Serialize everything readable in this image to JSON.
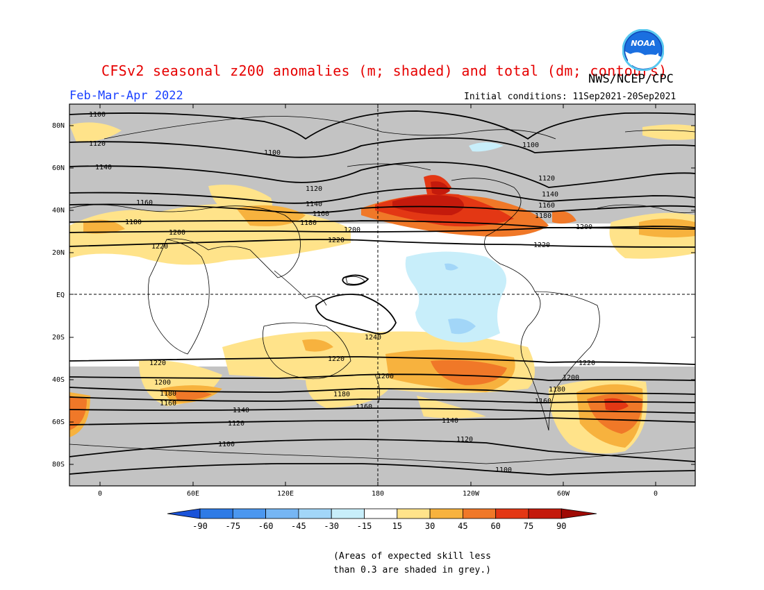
{
  "header": {
    "title": "CFSv2 seasonal z200 anomalies (m; shaded) and total (dm; contours)",
    "agency": "NWS/NCEP/CPC",
    "season": "Feb-Mar-Apr 2022",
    "initial_conditions": "Initial conditions: 11Sep2021-20Sep2021",
    "logo_text": "NOAA"
  },
  "map": {
    "lat_labels": [
      "80N",
      "60N",
      "40N",
      "20N",
      "EQ",
      "20S",
      "40S",
      "60S",
      "80S"
    ],
    "lon_labels": [
      "0",
      "60E",
      "120E",
      "180",
      "120W",
      "60W",
      "0"
    ],
    "contour_labels": [
      "1100",
      "1120",
      "1140",
      "1160",
      "1180",
      "1200",
      "1220",
      "1240"
    ],
    "colors": {
      "skill_grey": "#c3c3c3",
      "land_outline": "#000000"
    }
  },
  "colorbar": {
    "ticks": [
      "-90",
      "-75",
      "-60",
      "-45",
      "-30",
      "-15",
      "15",
      "30",
      "45",
      "60",
      "75",
      "90"
    ],
    "colors": [
      "#1a53d9",
      "#2e7be6",
      "#4b97ef",
      "#76b6f4",
      "#a2d6f8",
      "#c8eefa",
      "#ffffff",
      "#ffe38a",
      "#f7b23e",
      "#f07828",
      "#e33714",
      "#c41a0c",
      "#9f0a05"
    ]
  },
  "footnote": {
    "line1": "(Areas of expected skill less",
    "line2": "than 0.3 are shaded in grey.)"
  }
}
